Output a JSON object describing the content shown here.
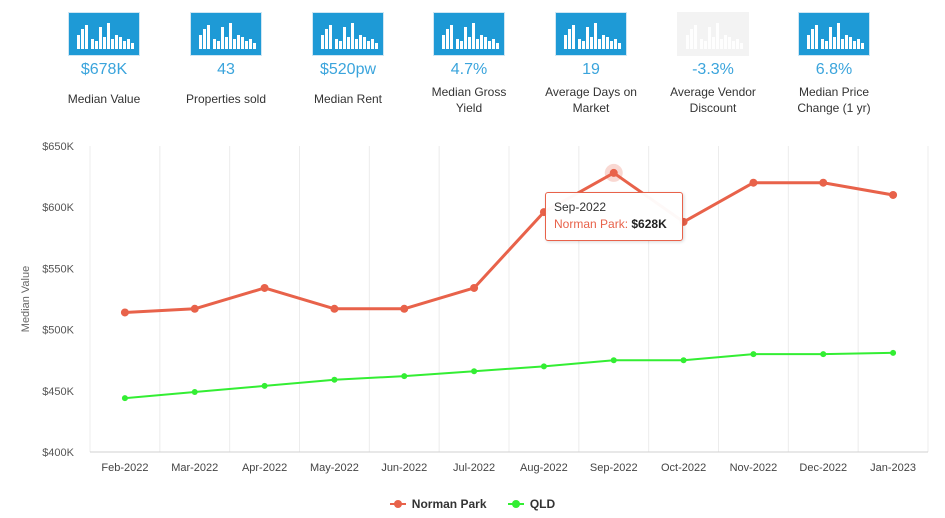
{
  "stats": [
    {
      "value": "$678K",
      "label": "Median Value",
      "icon": "bar-chart-icon",
      "muted": false
    },
    {
      "value": "43",
      "label": "Properties sold",
      "icon": "bar-chart-icon",
      "muted": false
    },
    {
      "value": "$520pw",
      "label": "Median Rent",
      "icon": "bar-chart-icon",
      "muted": false
    },
    {
      "value": "4.7%",
      "label": "Median Gross Yield",
      "icon": "bar-chart-icon",
      "muted": false
    },
    {
      "value": "19",
      "label": "Average Days on Market",
      "icon": "bar-chart-icon",
      "muted": false
    },
    {
      "value": "-3.3%",
      "label": "Average Vendor Discount",
      "icon": "bar-chart-icon",
      "muted": true
    },
    {
      "value": "6.8%",
      "label": "Median Price Change (1 yr)",
      "icon": "bar-chart-icon",
      "muted": false
    }
  ],
  "chart_data": {
    "type": "line",
    "ylabel": "Median Value",
    "xlabel": "",
    "ylim": [
      400,
      650
    ],
    "yticks": [
      "$400K",
      "$450K",
      "$500K",
      "$550K",
      "$600K",
      "$650K"
    ],
    "ytick_values": [
      400,
      450,
      500,
      550,
      600,
      650
    ],
    "categories": [
      "Feb-2022",
      "Mar-2022",
      "Apr-2022",
      "May-2022",
      "Jun-2022",
      "Jul-2022",
      "Aug-2022",
      "Sep-2022",
      "Oct-2022",
      "Nov-2022",
      "Dec-2022",
      "Jan-2023"
    ],
    "series": [
      {
        "name": "Norman Park",
        "color": "#e8624a",
        "values": [
          514,
          517,
          534,
          517,
          517,
          534,
          596,
          628,
          588,
          620,
          620,
          610
        ]
      },
      {
        "name": "QLD",
        "color": "#33ee33",
        "values": [
          444,
          449,
          454,
          459,
          462,
          466,
          470,
          475,
          475,
          480,
          480,
          481
        ]
      }
    ],
    "legend_position": "bottom-center",
    "grid": "vertical",
    "tooltip": {
      "date": "Sep-2022",
      "series": "Norman Park:",
      "value": "$628K"
    }
  }
}
